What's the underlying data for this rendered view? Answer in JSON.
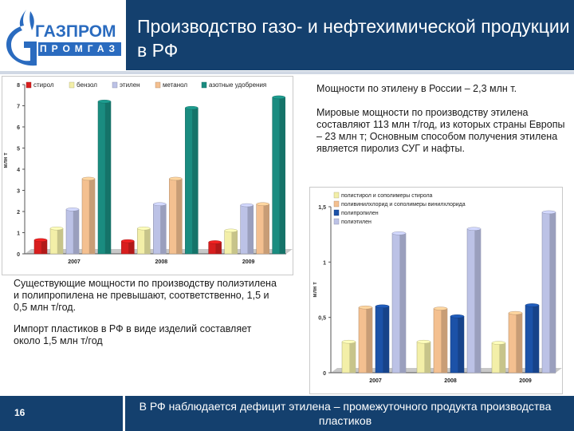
{
  "header": {
    "title": "Производство газо- и нефтехимической продукции в РФ",
    "logo_top": "ГАЗПРОМ",
    "logo_bottom": "ПРОМГАЗ"
  },
  "notes": {
    "ethylene_capacity": "Мощности  по этилену в России – 2,3 млн т.",
    "world_capacity": "Мировые мощности по производству этилена составляют 113 млн т/год, из которых страны Европы – 23 млн т; Основным способом получения этилена является пиролиз СУГ и нафты.",
    "polymer_capacity": "Существующие мощности по производству полиэтилена и полипропилена не превышают, соответственно, 1,5 и 0,5 млн т/год.",
    "import": "Импорт пластиков в РФ в виде изделий составляет около 1,5 млн т/год"
  },
  "footer": {
    "page_number": "16",
    "conclusion": "В РФ наблюдается дефицит этилена – промежуточного продукта производства пластиков"
  },
  "colors": {
    "brand_blue": "#14406e",
    "red": "#d81e1e",
    "yellow": "#f3efa8",
    "lavender": "#bcc2e6",
    "peach": "#f4c090",
    "teal": "#1a8c80",
    "blue": "#1c52a8"
  },
  "chart_data": [
    {
      "type": "bar",
      "ylabel": "млн т",
      "ylim": [
        0,
        8
      ],
      "yticks": [
        "0",
        "1",
        "2",
        "3",
        "4",
        "5",
        "6",
        "7",
        "8"
      ],
      "categories": [
        "2007",
        "2008",
        "2009"
      ],
      "legend_position": "top",
      "grid": false,
      "series": [
        {
          "name": "стирол",
          "color": "#d81e1e",
          "values": [
            0.65,
            0.6,
            0.55
          ]
        },
        {
          "name": "бензол",
          "color": "#f3efa8",
          "values": [
            1.2,
            1.2,
            1.1
          ]
        },
        {
          "name": "этилен",
          "color": "#bcc2e6",
          "values": [
            2.1,
            2.35,
            2.3
          ]
        },
        {
          "name": "метанол",
          "color": "#f4c090",
          "values": [
            3.55,
            3.55,
            2.35
          ]
        },
        {
          "name": "азотные удобрения",
          "color": "#1a8c80",
          "values": [
            7.2,
            6.9,
            7.4
          ]
        }
      ]
    },
    {
      "type": "bar",
      "ylabel": "млн т",
      "ylim": [
        0,
        1.5
      ],
      "yticks": [
        "0",
        "0,5",
        "1",
        "1,5"
      ],
      "categories": [
        "2007",
        "2008",
        "2009"
      ],
      "legend_position": "top",
      "grid": false,
      "series": [
        {
          "name": "полистирол и сополимеры стирола",
          "color": "#f3efa8",
          "values": [
            0.28,
            0.28,
            0.27
          ]
        },
        {
          "name": "поливинилхлорид и сополимеры винилхлорида",
          "color": "#f4c090",
          "values": [
            0.59,
            0.58,
            0.54
          ]
        },
        {
          "name": "полипропилен",
          "color": "#1c52a8",
          "values": [
            0.6,
            0.51,
            0.61
          ]
        },
        {
          "name": "полиэтилен",
          "color": "#bcc2e6",
          "values": [
            1.26,
            1.3,
            1.45
          ]
        }
      ]
    }
  ]
}
